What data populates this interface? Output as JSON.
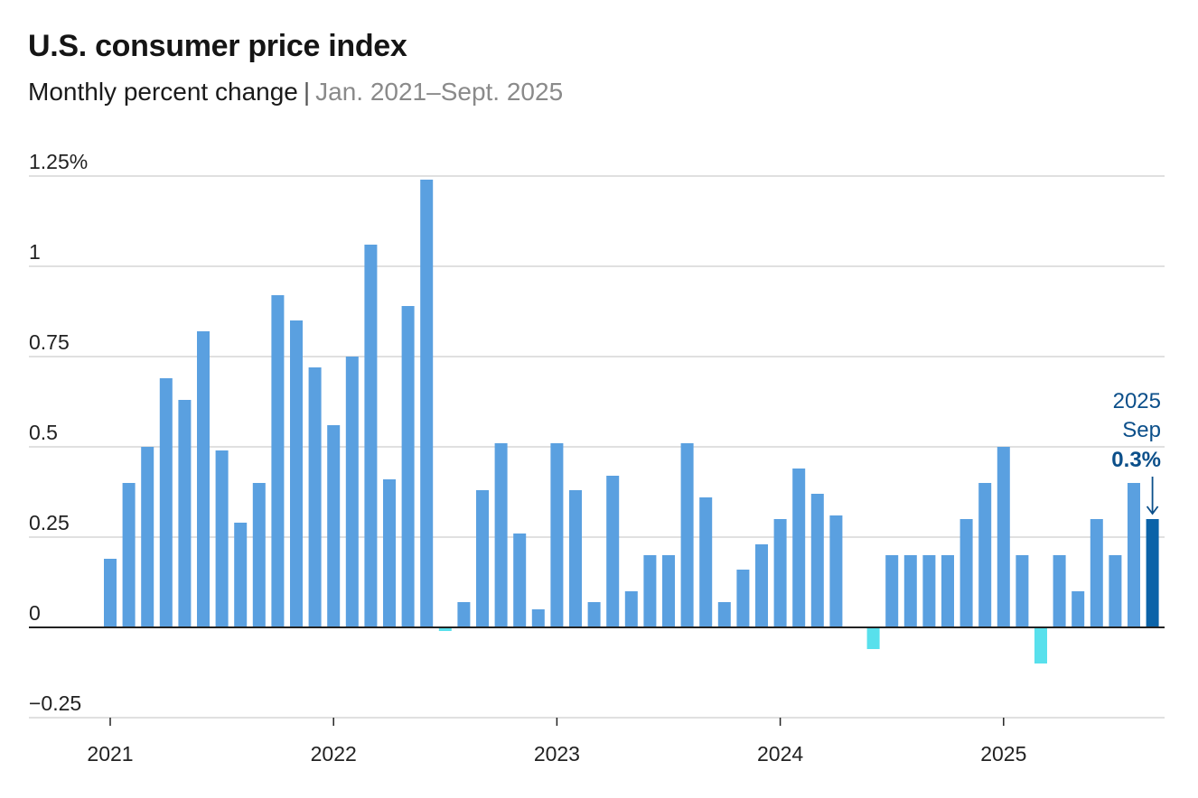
{
  "header": {
    "title": "U.S. consumer price index",
    "subtitle": "Monthly percent change",
    "separator": "|",
    "date_range": "Jan. 2021–Sept. 2025"
  },
  "colors": {
    "bar_positive": "#5aa0e0",
    "bar_negative": "#58e0ec",
    "bar_highlight": "#0b63a8",
    "annotation": "#0b4f8a",
    "gridline": "#d6d6d6",
    "zero_line": "#222222",
    "axis_text": "#222222"
  },
  "chart_data": {
    "type": "bar",
    "title": "U.S. consumer price index",
    "subtitle": "Monthly percent change | Jan. 2021–Sept. 2025",
    "xlabel": "",
    "ylabel": "",
    "ylim": [
      -0.25,
      1.25
    ],
    "y_ticks": [
      {
        "value": -0.25,
        "label": "−0.25"
      },
      {
        "value": 0,
        "label": "0"
      },
      {
        "value": 0.25,
        "label": "0.25"
      },
      {
        "value": 0.5,
        "label": "0.5"
      },
      {
        "value": 0.75,
        "label": "0.75"
      },
      {
        "value": 1,
        "label": "1"
      },
      {
        "value": 1.25,
        "label": "1.25%"
      }
    ],
    "x_ticks": [
      {
        "month_index": 0,
        "label": "2021"
      },
      {
        "month_index": 12,
        "label": "2022"
      },
      {
        "month_index": 24,
        "label": "2023"
      },
      {
        "month_index": 36,
        "label": "2024"
      },
      {
        "month_index": 48,
        "label": "2025"
      }
    ],
    "grid": true,
    "categories": [
      "2021-01",
      "2021-02",
      "2021-03",
      "2021-04",
      "2021-05",
      "2021-06",
      "2021-07",
      "2021-08",
      "2021-09",
      "2021-10",
      "2021-11",
      "2021-12",
      "2022-01",
      "2022-02",
      "2022-03",
      "2022-04",
      "2022-05",
      "2022-06",
      "2022-07",
      "2022-08",
      "2022-09",
      "2022-10",
      "2022-11",
      "2022-12",
      "2023-01",
      "2023-02",
      "2023-03",
      "2023-04",
      "2023-05",
      "2023-06",
      "2023-07",
      "2023-08",
      "2023-09",
      "2023-10",
      "2023-11",
      "2023-12",
      "2024-01",
      "2024-02",
      "2024-03",
      "2024-04",
      "2024-05",
      "2024-06",
      "2024-07",
      "2024-08",
      "2024-09",
      "2024-10",
      "2024-11",
      "2024-12",
      "2025-01",
      "2025-02",
      "2025-03",
      "2025-04",
      "2025-05",
      "2025-06",
      "2025-07",
      "2025-08",
      "2025-09"
    ],
    "values": [
      0.19,
      0.4,
      0.5,
      0.69,
      0.63,
      0.82,
      0.49,
      0.29,
      0.4,
      0.92,
      0.85,
      0.72,
      0.56,
      0.75,
      1.06,
      0.41,
      0.89,
      1.24,
      -0.01,
      0.07,
      0.38,
      0.51,
      0.26,
      0.05,
      0.51,
      0.38,
      0.07,
      0.42,
      0.1,
      0.2,
      0.2,
      0.51,
      0.36,
      0.07,
      0.16,
      0.23,
      0.3,
      0.44,
      0.37,
      0.31,
      0.0,
      -0.06,
      0.2,
      0.2,
      0.2,
      0.2,
      0.3,
      0.4,
      0.5,
      0.2,
      -0.1,
      0.2,
      0.1,
      0.3,
      0.2,
      0.4,
      0.3
    ],
    "highlight_index": 56,
    "annotation": {
      "year": "2025",
      "month": "Sep",
      "value_label": "0.3%"
    }
  }
}
